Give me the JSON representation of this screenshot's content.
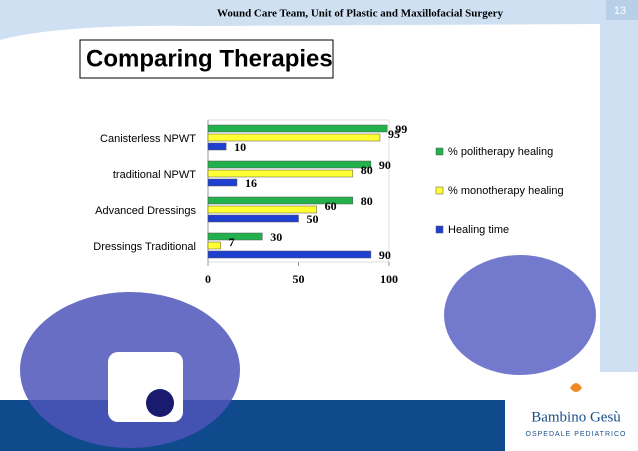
{
  "header": "Wound Care Team, Unit of Plastic and Maxillofacial Surgery",
  "page_number": "13",
  "logo": {
    "name": "Bambino Gesù",
    "subtitle": "OSPEDALE PEDIATRICO"
  },
  "chart_data": {
    "type": "bar",
    "orientation": "horizontal",
    "title": "Comparing Therapies",
    "categories": [
      "Canisterless NPWT",
      "traditional NPWT",
      "Advanced Dressings",
      "Dressings Traditional"
    ],
    "series": [
      {
        "name": "% politherapy healing",
        "color": "#22b14c",
        "values": [
          99,
          90,
          80,
          30
        ]
      },
      {
        "name": "% monotherapy healing",
        "color": "#ffff33",
        "values": [
          95,
          80,
          60,
          7
        ]
      },
      {
        "name": "Healing time",
        "color": "#1f3fd0",
        "values": [
          10,
          16,
          50,
          90
        ]
      }
    ],
    "xlim": [
      0,
      100
    ],
    "xticks": [
      0,
      50,
      100
    ],
    "legend": "right"
  }
}
